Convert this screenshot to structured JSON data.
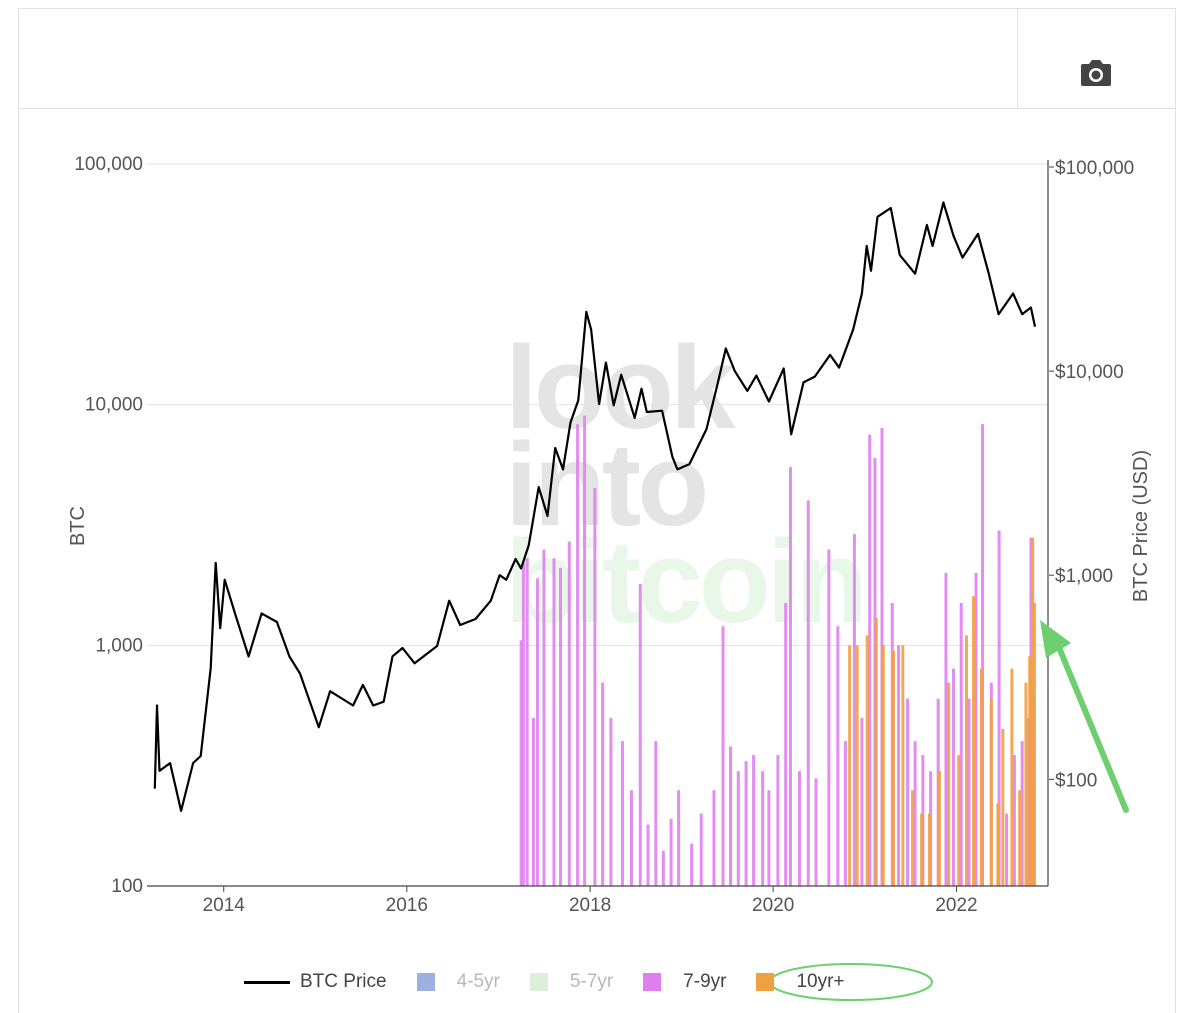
{
  "toolbar": {
    "camera_icon": "camera-icon"
  },
  "watermark": [
    "look",
    "into",
    "bitcoin"
  ],
  "colors": {
    "price_line": "#000000",
    "band_4_5yr": "#9db0e0",
    "band_5_7yr": "#dcefd9",
    "band_7_9yr": "#e07ff0",
    "band_10yr": "#f0a040",
    "annotation": "#6dcf6d"
  },
  "legend": {
    "btc_price": "BTC Price",
    "band_4_5yr": "4-5yr",
    "band_5_7yr": "5-7yr",
    "band_7_9yr": "7-9yr",
    "band_10yr": "10yr+"
  },
  "chart_data": {
    "type": "line",
    "title": "",
    "x_ticks": [
      "2014",
      "2016",
      "2018",
      "2020",
      "2022"
    ],
    "y_left": {
      "label": "BTC",
      "scale": "log",
      "range": [
        100,
        100000
      ],
      "ticks": [
        "100",
        "1,000",
        "10,000",
        "100,000"
      ]
    },
    "y_right": {
      "label": "BTC Price (USD)",
      "scale": "log",
      "range": [
        30,
        100000
      ],
      "ticks": [
        "$100",
        "$1,000",
        "$10,000",
        "$100,000"
      ]
    },
    "x_range": [
      "2013-03-01",
      "2023-01-01"
    ],
    "grid": true,
    "legend_position": "bottom",
    "series": [
      {
        "name": "BTC Price",
        "axis": "right",
        "type": "line",
        "points": [
          [
            "2013-04-01",
            90
          ],
          [
            "2013-04-10",
            230
          ],
          [
            "2013-04-20",
            110
          ],
          [
            "2013-06-01",
            120
          ],
          [
            "2013-07-15",
            70
          ],
          [
            "2013-09-01",
            120
          ],
          [
            "2013-10-01",
            130
          ],
          [
            "2013-11-10",
            350
          ],
          [
            "2013-11-30",
            1150
          ],
          [
            "2013-12-18",
            550
          ],
          [
            "2014-01-05",
            950
          ],
          [
            "2014-02-15",
            650
          ],
          [
            "2014-04-10",
            400
          ],
          [
            "2014-06-01",
            650
          ],
          [
            "2014-08-01",
            590
          ],
          [
            "2014-09-20",
            400
          ],
          [
            "2014-11-01",
            330
          ],
          [
            "2015-01-15",
            180
          ],
          [
            "2015-03-01",
            270
          ],
          [
            "2015-06-01",
            230
          ],
          [
            "2015-07-10",
            290
          ],
          [
            "2015-08-20",
            230
          ],
          [
            "2015-10-01",
            240
          ],
          [
            "2015-11-05",
            400
          ],
          [
            "2015-12-15",
            440
          ],
          [
            "2016-02-01",
            370
          ],
          [
            "2016-05-01",
            450
          ],
          [
            "2016-06-18",
            750
          ],
          [
            "2016-08-01",
            570
          ],
          [
            "2016-10-01",
            610
          ],
          [
            "2016-12-01",
            750
          ],
          [
            "2017-01-05",
            1000
          ],
          [
            "2017-02-01",
            950
          ],
          [
            "2017-03-10",
            1200
          ],
          [
            "2017-04-01",
            1080
          ],
          [
            "2017-05-01",
            1400
          ],
          [
            "2017-06-10",
            2700
          ],
          [
            "2017-07-15",
            1950
          ],
          [
            "2017-08-15",
            4200
          ],
          [
            "2017-09-15",
            3300
          ],
          [
            "2017-10-15",
            5600
          ],
          [
            "2017-11-15",
            7200
          ],
          [
            "2017-12-17",
            19500
          ],
          [
            "2018-01-05",
            16000
          ],
          [
            "2018-02-06",
            6900
          ],
          [
            "2018-03-05",
            11000
          ],
          [
            "2018-04-05",
            6800
          ],
          [
            "2018-05-05",
            9600
          ],
          [
            "2018-06-28",
            5900
          ],
          [
            "2018-07-25",
            8200
          ],
          [
            "2018-08-15",
            6300
          ],
          [
            "2018-10-15",
            6400
          ],
          [
            "2018-11-25",
            3800
          ],
          [
            "2018-12-15",
            3300
          ],
          [
            "2019-02-01",
            3500
          ],
          [
            "2019-04-10",
            5200
          ],
          [
            "2019-05-25",
            8700
          ],
          [
            "2019-06-26",
            12900
          ],
          [
            "2019-08-01",
            10000
          ],
          [
            "2019-09-20",
            8000
          ],
          [
            "2019-10-26",
            9500
          ],
          [
            "2019-12-15",
            7100
          ],
          [
            "2020-02-12",
            10300
          ],
          [
            "2020-03-13",
            4900
          ],
          [
            "2020-05-01",
            8800
          ],
          [
            "2020-06-15",
            9400
          ],
          [
            "2020-08-15",
            12000
          ],
          [
            "2020-09-20",
            10400
          ],
          [
            "2020-11-15",
            16000
          ],
          [
            "2020-12-20",
            24000
          ],
          [
            "2021-01-08",
            41000
          ],
          [
            "2021-01-25",
            31000
          ],
          [
            "2021-02-20",
            57000
          ],
          [
            "2021-04-14",
            63000
          ],
          [
            "2021-05-20",
            37000
          ],
          [
            "2021-07-20",
            30000
          ],
          [
            "2021-09-05",
            52000
          ],
          [
            "2021-09-28",
            41000
          ],
          [
            "2021-11-10",
            67000
          ],
          [
            "2021-12-20",
            46000
          ],
          [
            "2022-01-25",
            36000
          ],
          [
            "2022-03-28",
            47000
          ],
          [
            "2022-05-10",
            30000
          ],
          [
            "2022-06-18",
            19000
          ],
          [
            "2022-08-15",
            24000
          ],
          [
            "2022-09-20",
            19000
          ],
          [
            "2022-10-25",
            20500
          ],
          [
            "2022-11-10",
            16500
          ]
        ]
      },
      {
        "name": "4-5yr",
        "axis": "left",
        "type": "bar",
        "values": []
      },
      {
        "name": "5-7yr",
        "axis": "left",
        "type": "bar",
        "values": []
      },
      {
        "name": "7-9yr",
        "axis": "left",
        "type": "bar",
        "points": [
          [
            "2017-04-01",
            1050
          ],
          [
            "2017-04-10",
            2200
          ],
          [
            "2017-04-25",
            2300
          ],
          [
            "2017-05-20",
            500
          ],
          [
            "2017-06-05",
            1900
          ],
          [
            "2017-07-01",
            2500
          ],
          [
            "2017-08-10",
            2300
          ],
          [
            "2017-09-05",
            2100
          ],
          [
            "2017-10-10",
            2700
          ],
          [
            "2017-11-12",
            8300
          ],
          [
            "2017-12-10",
            9000
          ],
          [
            "2018-01-20",
            4500
          ],
          [
            "2018-02-20",
            700
          ],
          [
            "2018-03-25",
            500
          ],
          [
            "2018-05-10",
            400
          ],
          [
            "2018-06-15",
            250
          ],
          [
            "2018-07-20",
            1800
          ],
          [
            "2018-08-20",
            180
          ],
          [
            "2018-09-20",
            400
          ],
          [
            "2018-10-20",
            140
          ],
          [
            "2018-11-20",
            190
          ],
          [
            "2018-12-20",
            250
          ],
          [
            "2019-02-10",
            150
          ],
          [
            "2019-03-20",
            200
          ],
          [
            "2019-05-10",
            250
          ],
          [
            "2019-06-15",
            1200
          ],
          [
            "2019-07-15",
            380
          ],
          [
            "2019-08-15",
            300
          ],
          [
            "2019-09-15",
            330
          ],
          [
            "2019-10-15",
            350
          ],
          [
            "2019-11-20",
            300
          ],
          [
            "2019-12-15",
            250
          ],
          [
            "2020-01-20",
            350
          ],
          [
            "2020-02-20",
            1500
          ],
          [
            "2020-03-10",
            5500
          ],
          [
            "2020-04-15",
            300
          ],
          [
            "2020-05-20",
            4000
          ],
          [
            "2020-06-20",
            280
          ],
          [
            "2020-08-10",
            2500
          ],
          [
            "2020-09-15",
            1200
          ],
          [
            "2020-10-15",
            400
          ],
          [
            "2020-11-20",
            2900
          ],
          [
            "2020-12-20",
            500
          ],
          [
            "2021-01-20",
            7500
          ],
          [
            "2021-02-10",
            6000
          ],
          [
            "2021-03-10",
            8000
          ],
          [
            "2021-04-20",
            1500
          ],
          [
            "2021-05-15",
            1000
          ],
          [
            "2021-06-20",
            600
          ],
          [
            "2021-07-20",
            400
          ],
          [
            "2021-08-20",
            350
          ],
          [
            "2021-09-20",
            300
          ],
          [
            "2021-10-20",
            600
          ],
          [
            "2021-11-20",
            2000
          ],
          [
            "2021-12-20",
            800
          ],
          [
            "2022-01-20",
            1500
          ],
          [
            "2022-02-20",
            600
          ],
          [
            "2022-03-20",
            2000
          ],
          [
            "2022-04-15",
            8300
          ],
          [
            "2022-05-20",
            700
          ],
          [
            "2022-06-20",
            3000
          ],
          [
            "2022-07-20",
            200
          ],
          [
            "2022-08-20",
            350
          ],
          [
            "2022-09-20",
            400
          ],
          [
            "2022-10-15",
            500
          ],
          [
            "2022-10-25",
            2800
          ],
          [
            "2022-11-05",
            600
          ]
        ]
      },
      {
        "name": "10yr+",
        "axis": "left",
        "type": "bar",
        "points": [
          [
            "2020-11-01",
            1000
          ],
          [
            "2020-12-01",
            1000
          ],
          [
            "2021-01-10",
            1100
          ],
          [
            "2021-02-15",
            1300
          ],
          [
            "2021-03-15",
            1000
          ],
          [
            "2021-04-25",
            950
          ],
          [
            "2021-06-01",
            1000
          ],
          [
            "2021-07-10",
            250
          ],
          [
            "2021-08-15",
            200
          ],
          [
            "2021-09-15",
            200
          ],
          [
            "2021-10-25",
            300
          ],
          [
            "2021-12-01",
            700
          ],
          [
            "2022-01-10",
            350
          ],
          [
            "2022-02-10",
            1100
          ],
          [
            "2022-03-10",
            1600
          ],
          [
            "2022-04-10",
            800
          ],
          [
            "2022-05-20",
            600
          ],
          [
            "2022-06-15",
            220
          ],
          [
            "2022-07-05",
            450
          ],
          [
            "2022-08-10",
            800
          ],
          [
            "2022-09-10",
            250
          ],
          [
            "2022-10-05",
            700
          ],
          [
            "2022-10-20",
            900
          ],
          [
            "2022-11-01",
            2800
          ],
          [
            "2022-11-08",
            1500
          ]
        ]
      }
    ]
  }
}
